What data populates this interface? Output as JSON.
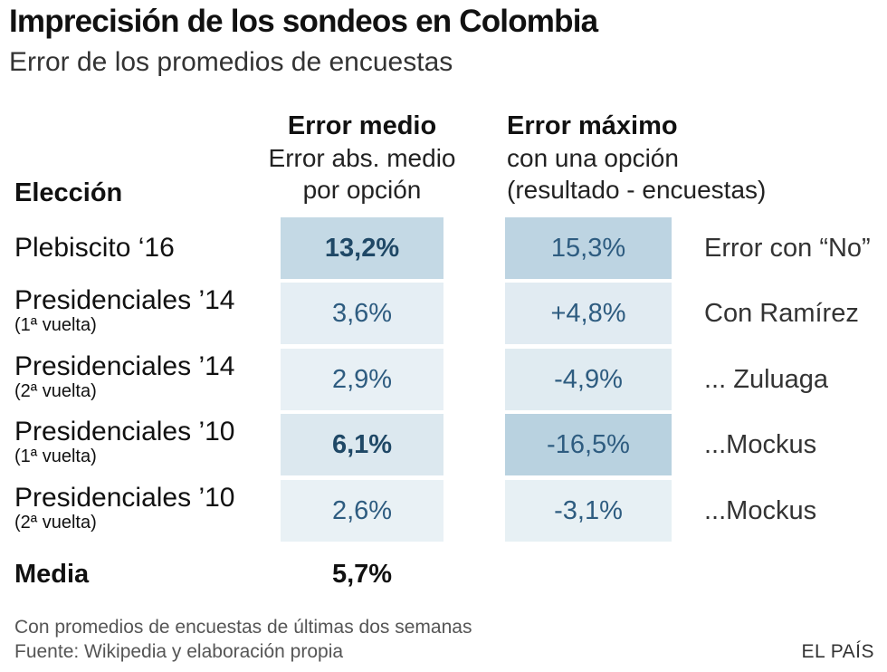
{
  "title": "Imprecisión de los sondeos en Colombia",
  "subtitle": "Error de los promedios de encuestas",
  "chart_data": {
    "type": "table",
    "columns": {
      "eleccion": "Elección",
      "error_medio": {
        "main": "Error medio",
        "sub1": "Error abs. medio",
        "sub2": "por opción"
      },
      "error_maximo": {
        "main": "Error máximo",
        "sub1": "con una opción",
        "sub2": "(resultado - encuestas)"
      }
    },
    "rows": [
      {
        "name": "Plebiscito ‘16",
        "sub": "",
        "error_medio": "13,2%",
        "error_medio_value": 13.2,
        "error_maximo": "15,3%",
        "error_maximo_value": 15.3,
        "note": "Error con “No”"
      },
      {
        "name": "Presidenciales ’14",
        "sub": "(1ª vuelta)",
        "error_medio": "3,6%",
        "error_medio_value": 3.6,
        "error_maximo": "+4,8%",
        "error_maximo_value": 4.8,
        "note": "Con Ramírez"
      },
      {
        "name": "Presidenciales ’14",
        "sub": "(2ª vuelta)",
        "error_medio": "2,9%",
        "error_medio_value": 2.9,
        "error_maximo": "-4,9%",
        "error_maximo_value": -4.9,
        "note": "... Zuluaga"
      },
      {
        "name": "Presidenciales ’10",
        "sub": "(1ª vuelta)",
        "error_medio": "6,1%",
        "error_medio_value": 6.1,
        "error_maximo": "-16,5%",
        "error_maximo_value": -16.5,
        "note": "...Mockus"
      },
      {
        "name": "Presidenciales ’10",
        "sub": "(2ª vuelta)",
        "error_medio": "2,6%",
        "error_medio_value": 2.6,
        "error_maximo": "-3,1%",
        "error_maximo_value": -3.1,
        "note": "...Mockus"
      }
    ],
    "media": {
      "label": "Media",
      "value": "5,7%"
    }
  },
  "footer": {
    "note": "Con promedios de encuestas de últimas dos semanas",
    "source": "Fuente: Wikipedia y elaboración propia",
    "brand": "EL PAÍS"
  },
  "colors": {
    "heat_low": "#f6f9fb",
    "heat_high": "#b9d2e0"
  }
}
